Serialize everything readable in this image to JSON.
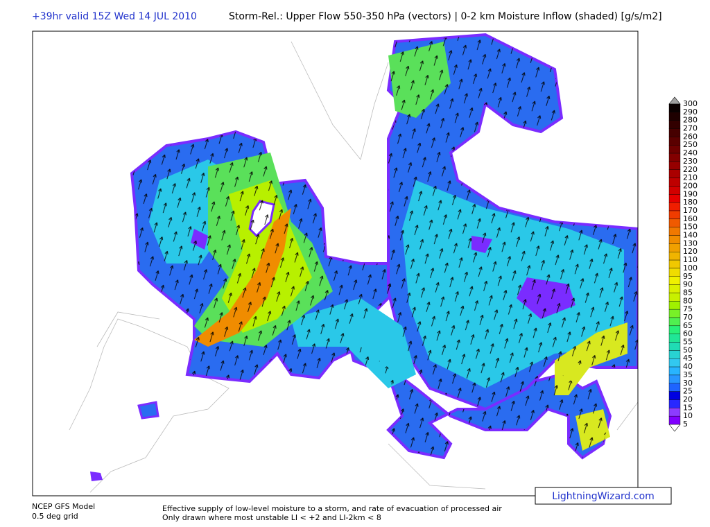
{
  "header": {
    "valid_time": "+39hr valid 15Z Wed 14 JUL 2010",
    "title": "Storm-Rel.: Upper Flow 550-350 hPa (vectors) | 0-2 km Moisture Inflow (shaded) [g/s/m2]"
  },
  "colorbar": {
    "levels": [
      300,
      290,
      280,
      270,
      260,
      250,
      240,
      230,
      220,
      210,
      200,
      190,
      180,
      170,
      160,
      150,
      140,
      130,
      120,
      110,
      100,
      95,
      90,
      85,
      80,
      75,
      70,
      65,
      60,
      55,
      50,
      45,
      40,
      35,
      30,
      25,
      20,
      15,
      10,
      5
    ],
    "colors": [
      "#a0a0a0",
      "#0a0000",
      "#1e0000",
      "#320000",
      "#460000",
      "#5a0000",
      "#6e0000",
      "#820000",
      "#960000",
      "#aa0000",
      "#be0000",
      "#d20000",
      "#e60000",
      "#f01e00",
      "#f03c00",
      "#f05a00",
      "#f07800",
      "#f08c00",
      "#f0a000",
      "#f0b400",
      "#f0c800",
      "#f0dc00",
      "#f0f000",
      "#dcf000",
      "#c8f000",
      "#a0f000",
      "#78f028",
      "#50f050",
      "#28f078",
      "#20e696",
      "#20dcb4",
      "#28d2d2",
      "#32c8f0",
      "#28b4ff",
      "#2896ff",
      "#1e64ff",
      "#0000e0",
      "#2828ff",
      "#8c3cff",
      "#8000ff"
    ]
  },
  "footer": {
    "model": "NCEP GFS Model",
    "grid": "0.5 deg grid",
    "description_line1": "Effective supply of low-level moisture to a storm, and rate of evacuation of processed air",
    "description_line2": "Only drawn where most unstable LI < +2 and LI-2km < 8",
    "watermark": "LightningWizard.com"
  }
}
